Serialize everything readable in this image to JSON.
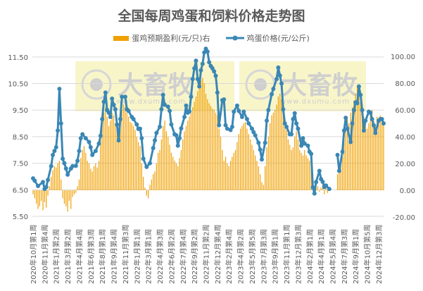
{
  "chart_data": {
    "type": "bar+line",
    "title": "全国每周鸡蛋和饲料价格走势图",
    "legend": {
      "placement": "top",
      "entries": [
        "蛋鸡预期盈利(元/只)右",
        "鸡蛋价格(元/公斤)"
      ]
    },
    "watermark": {
      "text": "大畜牧",
      "url_text": "www.dxumu.com"
    },
    "colors": {
      "profit_bars": "#F0A000",
      "price_line": "#3A87B5",
      "grid": "#D9D9D9",
      "watermark_bg": "#F7F3C0"
    },
    "grid": true,
    "left_axis": {
      "ylim": [
        5.5,
        12.0
      ],
      "ticks": [
        "5.50",
        "6.50",
        "7.50",
        "8.50",
        "9.50",
        "10.50",
        "11.50"
      ]
    },
    "right_axis": {
      "ylim": [
        -20,
        100
      ],
      "ticks": [
        "-20.00",
        "0.00",
        "20.00",
        "40.00",
        "60.00",
        "80.00",
        "100.00"
      ]
    },
    "x_tick_step_weeks": 7,
    "x_ticks": [
      "2020年10月第1周",
      "2020年11月第4周",
      "2021年1月第2周",
      "2021年3月第2周",
      "2021年4月第4周",
      "2021年6月第3周",
      "2021年8月第1周",
      "2021年9月第4周",
      "2021年11月第3周",
      "2022年1月第1周",
      "2022年3月第1周",
      "2022年4月第3周",
      "2022年6月第2周",
      "2022年7月第4周",
      "2022年9月第2周",
      "2022年11月第2周",
      "2022年12月第4周",
      "2023年2月第4周",
      "2023年4月第2周",
      "2023年5月第5周",
      "2023年7月第3周",
      "2023年9月第1周",
      "2023年11月第1周",
      "2023年12月第3周",
      "2024年2月第1周",
      "2024年4月第1周",
      "2024年5月第4周",
      "2024年7月第3周",
      "2024年9月第1周",
      "2024年10月第5周",
      "2024年12月第3周"
    ],
    "series": [
      {
        "name": "蛋鸡预期盈利(元/只)右",
        "axis": "right",
        "kind": "bar",
        "values": [
          -3,
          -6,
          -10,
          -14,
          -12,
          -8,
          -15,
          -9,
          -13,
          -4,
          3,
          10,
          15,
          18,
          17,
          20,
          22,
          8,
          -6,
          -10,
          -12,
          -16,
          -8,
          -14,
          -5,
          -3,
          -2,
          3,
          8,
          24,
          30,
          33,
          28,
          22,
          20,
          16,
          14,
          18,
          20,
          17,
          22,
          38,
          50,
          58,
          62,
          55,
          48,
          52,
          58,
          56,
          50,
          46,
          42,
          50,
          60,
          64,
          62,
          58,
          55,
          51,
          50,
          48,
          45,
          40,
          36,
          33,
          20,
          10,
          2,
          -4,
          -6,
          4,
          8,
          12,
          14,
          20,
          28,
          30,
          38,
          48,
          52,
          44,
          40,
          34,
          28,
          25,
          22,
          20,
          18,
          24,
          30,
          38,
          44,
          48,
          52,
          55,
          58,
          62,
          66,
          70,
          74,
          78,
          82,
          84,
          80,
          72,
          68,
          65,
          63,
          61,
          60,
          58,
          56,
          46,
          40,
          30,
          22,
          25,
          20,
          18,
          22,
          25,
          28,
          30,
          36,
          42,
          46,
          48,
          50,
          51,
          46,
          42,
          38,
          34,
          30,
          26,
          22,
          18,
          12,
          6,
          4,
          18,
          32,
          40,
          50,
          56,
          58,
          60,
          64,
          70,
          72,
          68,
          58,
          52,
          45,
          38,
          34,
          30,
          32,
          40,
          44,
          38,
          30,
          28,
          26,
          30,
          26,
          24,
          22,
          20,
          4,
          -2,
          2,
          3,
          -1,
          2,
          4,
          -3,
          3,
          -2,
          1,
          null,
          null,
          null,
          null,
          12,
          16,
          22,
          25,
          38,
          46,
          55,
          50,
          58,
          62,
          67,
          72,
          78,
          70,
          66,
          60,
          55,
          48,
          46,
          50,
          58,
          60,
          52,
          48,
          55,
          52,
          56,
          54,
          50
        ]
      },
      {
        "name": "鸡蛋价格(元/公斤)",
        "axis": "left",
        "kind": "line",
        "points": [
          [
            0,
            6.93
          ],
          [
            1,
            6.84
          ],
          [
            3,
            6.64
          ],
          [
            6,
            6.79
          ],
          [
            7,
            6.53
          ],
          [
            8,
            6.6
          ],
          [
            9,
            6.87
          ],
          [
            11,
            7.39
          ],
          [
            12,
            7.81
          ],
          [
            13,
            7.96
          ],
          [
            14,
            8.1
          ],
          [
            15,
            8.73
          ],
          [
            16,
            10.3
          ],
          [
            17,
            9.0
          ],
          [
            18,
            7.67
          ],
          [
            19,
            7.5
          ],
          [
            20,
            7.3
          ],
          [
            21,
            7.07
          ],
          [
            23,
            7.3
          ],
          [
            24,
            7.39
          ],
          [
            26,
            7.4
          ],
          [
            27,
            7.59
          ],
          [
            28,
            7.96
          ],
          [
            29,
            8.44
          ],
          [
            30,
            8.59
          ],
          [
            32,
            8.44
          ],
          [
            34,
            8.3
          ],
          [
            35,
            8.1
          ],
          [
            36,
            7.81
          ],
          [
            38,
            7.96
          ],
          [
            40,
            8.24
          ],
          [
            41,
            8.53
          ],
          [
            42,
            9.16
          ],
          [
            43,
            9.81
          ],
          [
            44,
            10.16
          ],
          [
            45,
            9.5
          ],
          [
            46,
            9.4
          ],
          [
            47,
            9.24
          ],
          [
            48,
            9.93
          ],
          [
            49,
            9.7
          ],
          [
            50,
            9.53
          ],
          [
            51,
            8.96
          ],
          [
            52,
            8.36
          ],
          [
            53,
            9.16
          ],
          [
            54,
            10.0
          ],
          [
            56,
            10.0
          ],
          [
            57,
            9.53
          ],
          [
            58,
            9.47
          ],
          [
            60,
            9.24
          ],
          [
            61,
            9.16
          ],
          [
            63,
            8.96
          ],
          [
            64,
            8.79
          ],
          [
            65,
            8.8
          ],
          [
            66,
            8.44
          ],
          [
            67,
            7.67
          ],
          [
            69,
            7.36
          ],
          [
            71,
            7.5
          ],
          [
            73,
            8.07
          ],
          [
            74,
            8.36
          ],
          [
            75,
            8.64
          ],
          [
            77,
            8.87
          ],
          [
            78,
            9.53
          ],
          [
            79,
            10.07
          ],
          [
            80,
            9.7
          ],
          [
            82,
            9.63
          ],
          [
            83,
            9.47
          ],
          [
            84,
            8.96
          ],
          [
            86,
            8.59
          ],
          [
            87,
            8.55
          ],
          [
            88,
            8.16
          ],
          [
            89,
            8.44
          ],
          [
            90,
            8.81
          ],
          [
            92,
            9.24
          ],
          [
            93,
            9.67
          ],
          [
            94,
            9.4
          ],
          [
            95,
            9.45
          ],
          [
            96,
            10.0
          ],
          [
            97,
            10.67
          ],
          [
            98,
            11.07
          ],
          [
            99,
            11.36
          ],
          [
            100,
            10.67
          ],
          [
            101,
            10.39
          ],
          [
            102,
            11.0
          ],
          [
            103,
            11.24
          ],
          [
            104,
            11.67
          ],
          [
            105,
            11.81
          ],
          [
            106,
            11.7
          ],
          [
            107,
            11.3
          ],
          [
            108,
            11.16
          ],
          [
            109,
            11.07
          ],
          [
            110,
            10.96
          ],
          [
            111,
            10.79
          ],
          [
            112,
            10.16
          ],
          [
            113,
            8.93
          ],
          [
            115,
            9.87
          ],
          [
            116,
            9.9
          ],
          [
            117,
            8.93
          ],
          [
            118,
            8.8
          ],
          [
            120,
            8.75
          ],
          [
            121,
            8.87
          ],
          [
            122,
            9.44
          ],
          [
            124,
            9.67
          ],
          [
            125,
            9.47
          ],
          [
            127,
            9.24
          ],
          [
            128,
            9.44
          ],
          [
            130,
            9.16
          ],
          [
            131,
            9.0
          ],
          [
            133,
            8.8
          ],
          [
            134,
            8.67
          ],
          [
            135,
            8.55
          ],
          [
            137,
            8.27
          ],
          [
            138,
            8.01
          ],
          [
            139,
            7.64
          ],
          [
            141,
            8.27
          ],
          [
            142,
            9.1
          ],
          [
            143,
            9.5
          ],
          [
            145,
            10.1
          ],
          [
            146,
            10.3
          ],
          [
            148,
            10.67
          ],
          [
            149,
            11.1
          ],
          [
            150,
            10.8
          ],
          [
            151,
            10.5
          ],
          [
            152,
            9.53
          ],
          [
            153,
            9.0
          ],
          [
            154,
            8.87
          ],
          [
            156,
            8.59
          ],
          [
            157,
            8.59
          ],
          [
            158,
            9.16
          ],
          [
            159,
            9.38
          ],
          [
            160,
            9.0
          ],
          [
            161,
            8.8
          ],
          [
            163,
            8.16
          ],
          [
            164,
            8.44
          ],
          [
            165,
            8.24
          ],
          [
            167,
            8.16
          ],
          [
            168,
            7.93
          ],
          [
            169,
            7.85
          ],
          [
            170,
            6.59
          ],
          [
            171,
            6.36
          ],
          [
            172,
            6.79
          ],
          [
            174,
            7.21
          ],
          [
            175,
            6.9
          ],
          [
            176,
            6.8
          ],
          [
            177,
            6.6
          ],
          [
            178,
            6.66
          ],
          [
            180,
            6.53
          ],
          [
            185,
            7.81
          ],
          [
            186,
            7.21
          ],
          [
            188,
            7.93
          ],
          [
            189,
            8.73
          ],
          [
            190,
            9.21
          ],
          [
            191,
            8.8
          ],
          [
            193,
            8.3
          ],
          [
            194,
            9.0
          ],
          [
            195,
            9.5
          ],
          [
            196,
            9.79
          ],
          [
            197,
            9.76
          ],
          [
            198,
            10.39
          ],
          [
            199,
            10.07
          ],
          [
            200,
            9.5
          ],
          [
            201,
            8.73
          ],
          [
            202,
            9.1
          ],
          [
            204,
            9.44
          ],
          [
            205,
            9.4
          ],
          [
            206,
            9.16
          ],
          [
            207,
            8.93
          ],
          [
            208,
            8.64
          ],
          [
            210,
            9.1
          ],
          [
            211,
            9.16
          ],
          [
            212,
            9.16
          ],
          [
            213,
            9.0
          ]
        ]
      }
    ]
  }
}
